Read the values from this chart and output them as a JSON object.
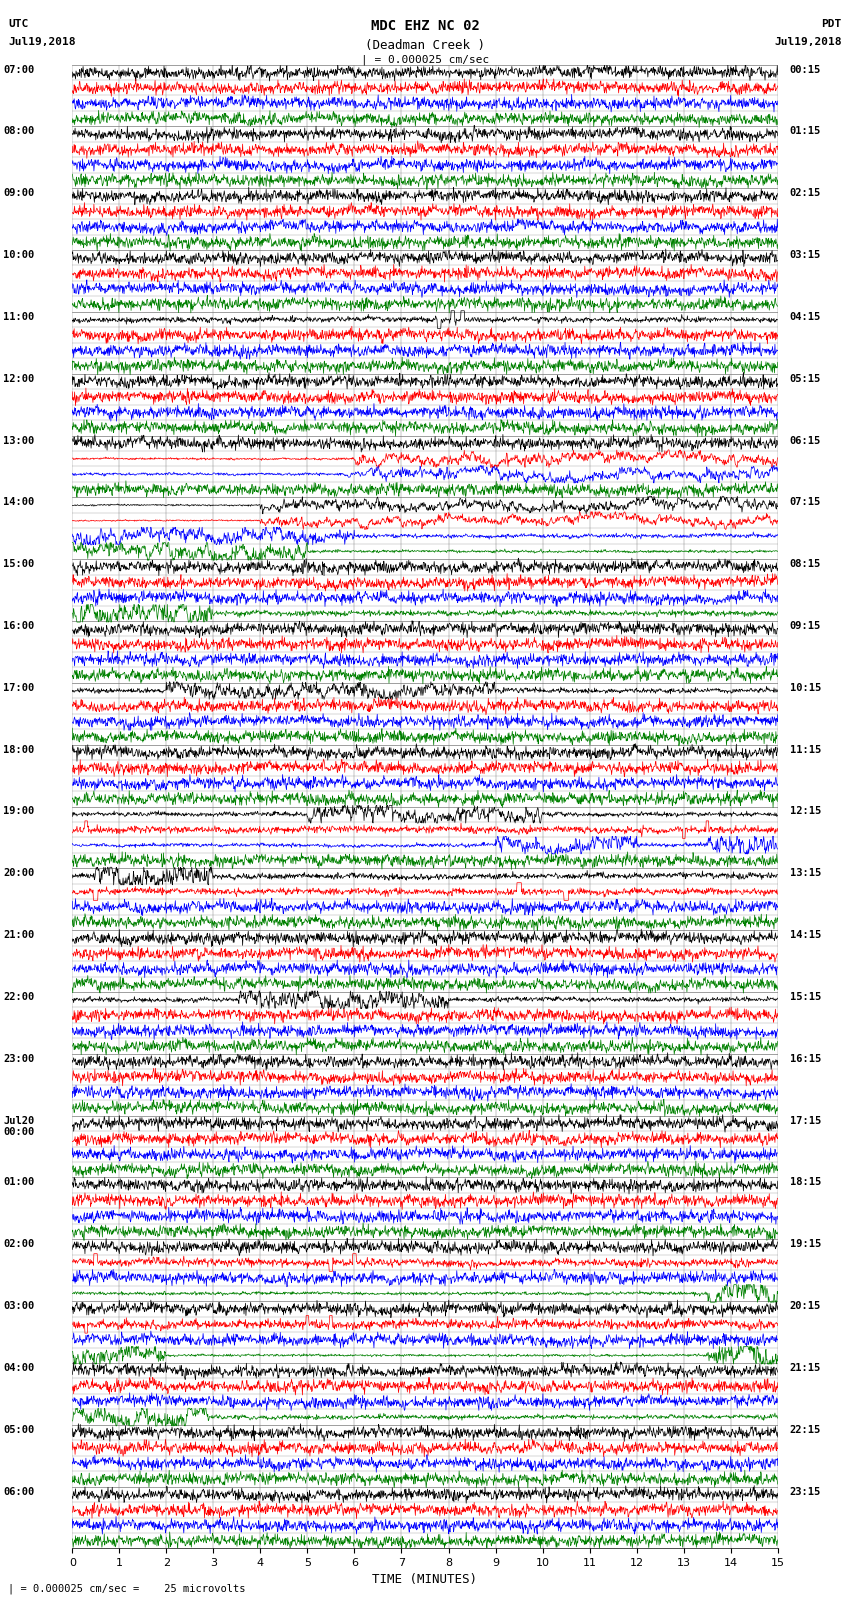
{
  "title_line1": "MDC EHZ NC 02",
  "title_line2": "(Deadman Creek )",
  "scale_label": "| = 0.000025 cm/sec",
  "utc_label": "UTC",
  "utc_date": "Jul19,2018",
  "pdt_label": "PDT",
  "pdt_date": "Jul19,2018",
  "xlabel": "TIME (MINUTES)",
  "bottom_note": "| = 0.000025 cm/sec =    25 microvolts",
  "left_times": [
    "07:00",
    "08:00",
    "09:00",
    "10:00",
    "11:00",
    "12:00",
    "13:00",
    "14:00",
    "15:00",
    "16:00",
    "17:00",
    "18:00",
    "19:00",
    "20:00",
    "21:00",
    "22:00",
    "23:00",
    "Jul20\n00:00",
    "01:00",
    "02:00",
    "03:00",
    "04:00",
    "05:00",
    "06:00"
  ],
  "right_times": [
    "00:15",
    "01:15",
    "02:15",
    "03:15",
    "04:15",
    "05:15",
    "06:15",
    "07:15",
    "08:15",
    "09:15",
    "10:15",
    "11:15",
    "12:15",
    "13:15",
    "14:15",
    "15:15",
    "16:15",
    "17:15",
    "18:15",
    "19:15",
    "20:15",
    "21:15",
    "22:15",
    "23:15"
  ],
  "n_hours": 24,
  "n_cols": 4,
  "row_colors": [
    "black",
    "red",
    "blue",
    "green"
  ],
  "x_min": 0,
  "x_max": 15,
  "x_ticks": [
    0,
    1,
    2,
    3,
    4,
    5,
    6,
    7,
    8,
    9,
    10,
    11,
    12,
    13,
    14,
    15
  ],
  "bg_color": "white",
  "grid_color": "#777777",
  "line_width": 0.5,
  "trace_amplitude": 0.38
}
